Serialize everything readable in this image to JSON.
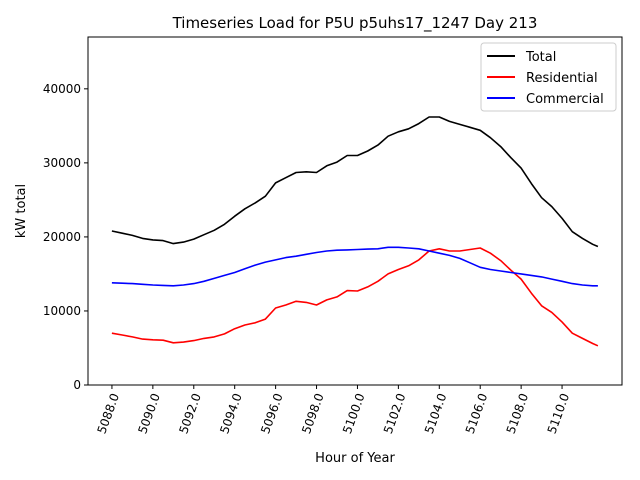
{
  "chart_data": {
    "type": "line",
    "title": "Timeseries Load for P5U p5uhs17_1247  Day 213",
    "xlabel": "Hour of Year",
    "ylabel": "kW total",
    "xlim": [
      5086.83,
      5112.93
    ],
    "ylim": [
      0,
      47000
    ],
    "grid": false,
    "legend_position": "top-right",
    "xticks": [
      5088,
      5090,
      5092,
      5094,
      5096,
      5098,
      5100,
      5102,
      5104,
      5106,
      5108,
      5110
    ],
    "xtick_labels": [
      "5088.0",
      "5090.0",
      "5092.0",
      "5094.0",
      "5096.0",
      "5098.0",
      "5100.0",
      "5102.0",
      "5104.0",
      "5106.0",
      "5108.0",
      "5110.0"
    ],
    "yticks": [
      0,
      10000,
      20000,
      30000,
      40000
    ],
    "ytick_labels": [
      "0",
      "10000",
      "20000",
      "30000",
      "40000"
    ],
    "x": [
      5088,
      5088.5,
      5089,
      5089.5,
      5090,
      5090.5,
      5091,
      5091.5,
      5092,
      5092.5,
      5093,
      5093.5,
      5094,
      5094.5,
      5095,
      5095.5,
      5096,
      5096.5,
      5097,
      5097.5,
      5098,
      5098.5,
      5099,
      5099.5,
      5100,
      5100.5,
      5101,
      5101.5,
      5102,
      5102.5,
      5103,
      5103.5,
      5104,
      5104.5,
      5105,
      5105.5,
      5106,
      5106.5,
      5107,
      5107.5,
      5108,
      5108.5,
      5109,
      5109.5,
      5110,
      5110.5,
      5111,
      5111.5,
      5111.75
    ],
    "series": [
      {
        "name": "Total",
        "color": "#000000",
        "values": [
          20800,
          20500,
          20200,
          19800,
          19600,
          19500,
          19100,
          19300,
          19700,
          20300,
          20900,
          21700,
          22800,
          23800,
          24600,
          25500,
          27300,
          28000,
          28700,
          28800,
          28700,
          29600,
          30100,
          31000,
          31000,
          31600,
          32400,
          33600,
          34200,
          34600,
          35300,
          36200,
          36200,
          35600,
          35200,
          34800,
          34400,
          33400,
          32200,
          30700,
          29300,
          27200,
          25300,
          24100,
          22500,
          20700,
          19800,
          19000,
          18700
        ]
      },
      {
        "name": "Residential",
        "color": "#ff0000",
        "values": [
          7000,
          6750,
          6500,
          6200,
          6100,
          6050,
          5700,
          5800,
          6000,
          6300,
          6500,
          6900,
          7600,
          8100,
          8400,
          8900,
          10400,
          10800,
          11300,
          11150,
          10800,
          11500,
          11900,
          12750,
          12700,
          13250,
          14000,
          15000,
          15600,
          16100,
          16900,
          18100,
          18400,
          18100,
          18100,
          18300,
          18500,
          17800,
          16800,
          15500,
          14300,
          12400,
          10700,
          9800,
          8500,
          7000,
          6300,
          5600,
          5300
        ]
      },
      {
        "name": "Commercial",
        "color": "#0000ff",
        "values": [
          13800,
          13750,
          13700,
          13600,
          13500,
          13450,
          13400,
          13500,
          13700,
          14000,
          14400,
          14800,
          15200,
          15700,
          16200,
          16600,
          16900,
          17200,
          17400,
          17650,
          17900,
          18100,
          18200,
          18250,
          18300,
          18350,
          18400,
          18600,
          18600,
          18500,
          18400,
          18100,
          17800,
          17500,
          17100,
          16500,
          15900,
          15600,
          15400,
          15200,
          15000,
          14800,
          14600,
          14300,
          14000,
          13700,
          13500,
          13400,
          13400
        ]
      }
    ]
  }
}
